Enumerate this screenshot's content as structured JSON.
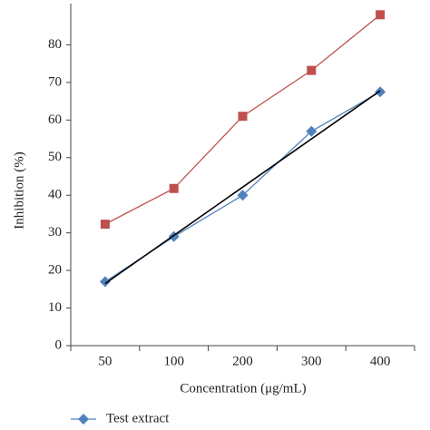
{
  "chart_data": {
    "type": "line",
    "x_label": "Concentration (μg/mL)",
    "y_label": "Inhibition (%)",
    "categories": [
      "50",
      "100",
      "200",
      "300",
      "400"
    ],
    "series": [
      {
        "color": "#c0504d",
        "marker": "square",
        "values": [
          32.3,
          41.8,
          61,
          73.2,
          88
        ]
      },
      {
        "name": "Test extract",
        "color": "#4f81bd",
        "marker": "diamond",
        "values": [
          17,
          29,
          40,
          57,
          67.5
        ]
      }
    ],
    "trendline": {
      "color": "#000000",
      "values": [
        16.5,
        67.8
      ]
    },
    "ylim": [
      0,
      90
    ],
    "yticks": [
      0,
      10,
      20,
      30,
      40,
      50,
      60,
      70,
      80
    ],
    "grid": false
  }
}
